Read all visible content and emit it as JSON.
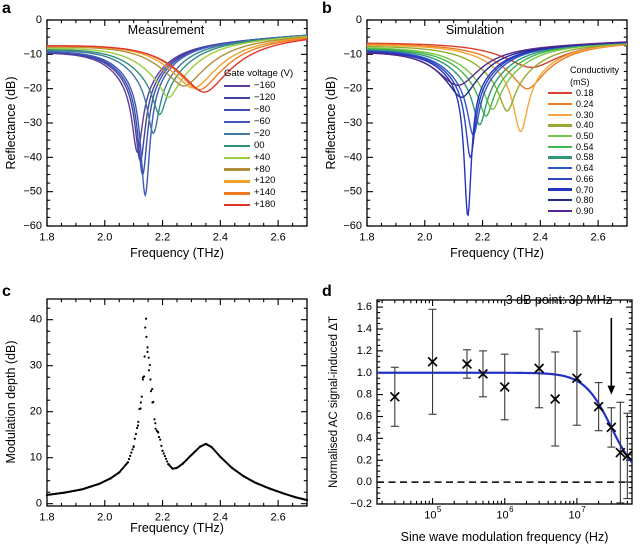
{
  "figure": {
    "background": "#ffffff",
    "axis_color": "#000000",
    "panels": [
      {
        "letter": "a"
      },
      {
        "letter": "b"
      },
      {
        "letter": "c"
      },
      {
        "letter": "d"
      }
    ]
  },
  "chart_data": [
    {
      "panel": "a",
      "type": "line",
      "title": "Measurement",
      "xlabel": "Frequency (THz)",
      "ylabel": "Reflectance (dB)",
      "xlim": [
        1.8,
        2.7
      ],
      "ylim": [
        -60,
        0
      ],
      "xticks": [
        1.8,
        2.0,
        2.2,
        2.4,
        2.6
      ],
      "x_minor_step": 0.05,
      "yticks": [
        0,
        -10,
        -20,
        -30,
        -40,
        -50,
        -60
      ],
      "y_minor_step": 2.5,
      "legend_title_lines": [
        "Gate voltage (V)"
      ],
      "baseline_right_db": -4.1,
      "line_width": 1.4,
      "model_note": "R(f) = lerp(left_db to right_db over 1.8-2.7) - broad_db*Lor(f-dip_thz, broad_w) - (totaldepth-broad_db)*Lor(f-dip_thz, narrow_w)",
      "series": [
        {
          "label": "−160",
          "color": "#5f3a9b",
          "left_db": -8.6,
          "dip_thz": 2.113,
          "min_db": -38.5,
          "broad_db": 11,
          "broad_w": 0.1,
          "narrow_w": 0.022
        },
        {
          "label": "−120",
          "color": "#43419f",
          "left_db": -8.5,
          "dip_thz": 2.123,
          "min_db": -41.0,
          "broad_db": 11,
          "broad_w": 0.1,
          "narrow_w": 0.021
        },
        {
          "label": "−80",
          "color": "#3c4fae",
          "left_db": -8.45,
          "dip_thz": 2.131,
          "min_db": -45.0,
          "broad_db": 11,
          "broad_w": 0.1,
          "narrow_w": 0.02
        },
        {
          "label": "−60",
          "color": "#3f57bb",
          "left_db": -8.35,
          "dip_thz": 2.14,
          "min_db": -51.0,
          "broad_db": 11,
          "broad_w": 0.1,
          "narrow_w": 0.019
        },
        {
          "label": "−20",
          "color": "#41799f",
          "left_db": -8.1,
          "dip_thz": 2.168,
          "min_db": -33.0,
          "broad_db": 11,
          "broad_w": 0.104,
          "narrow_w": 0.024
        },
        {
          "label": "00",
          "color": "#2f9179",
          "left_db": -7.8,
          "dip_thz": 2.19,
          "min_db": -27.5,
          "broad_db": 11,
          "broad_w": 0.11,
          "narrow_w": 0.028
        },
        {
          "label": "+40",
          "color": "#9ccd3e",
          "left_db": -7.5,
          "dip_thz": 2.222,
          "min_db": -22.5,
          "broad_db": 11,
          "broad_w": 0.115,
          "narrow_w": 0.034
        },
        {
          "label": "+80",
          "color": "#b08f3c",
          "left_db": -7.25,
          "dip_thz": 2.275,
          "min_db": -19.2,
          "broad_db": 11,
          "broad_w": 0.12,
          "narrow_w": 0.045
        },
        {
          "label": "+120",
          "color": "#f0a22b",
          "left_db": -7.05,
          "dip_thz": 2.308,
          "min_db": -19.8,
          "broad_db": 12,
          "broad_w": 0.12,
          "narrow_w": 0.05
        },
        {
          "label": "+140",
          "color": "#ee7b22",
          "left_db": -6.9,
          "dip_thz": 2.328,
          "min_db": -20.3,
          "broad_db": 12,
          "broad_w": 0.125,
          "narrow_w": 0.052
        },
        {
          "label": "+180",
          "color": "#e2342b",
          "left_db": -6.8,
          "dip_thz": 2.345,
          "min_db": -21.0,
          "broad_db": 13,
          "broad_w": 0.13,
          "narrow_w": 0.055
        }
      ]
    },
    {
      "panel": "b",
      "type": "line",
      "title": "Simulation",
      "xlabel": "Frequency (THz)",
      "ylabel": "Reflectance (dB)",
      "xlim": [
        1.8,
        2.7
      ],
      "ylim": [
        -60,
        0
      ],
      "xticks": [
        1.8,
        2.0,
        2.2,
        2.4,
        2.6
      ],
      "x_minor_step": 0.05,
      "yticks": [
        0,
        -10,
        -20,
        -30,
        -40,
        -50,
        -60
      ],
      "y_minor_step": 2.5,
      "legend_title_lines": [
        "Conductivity",
        "(mS)"
      ],
      "baseline_right_db": -6.1,
      "line_width": 1.4,
      "model_note": "same dip model as panel a",
      "series": [
        {
          "label": "0.18",
          "color": "#d8402f",
          "left_db": -6.4,
          "dip_thz": 2.37,
          "min_db": -13.8,
          "broad_db": 6,
          "broad_w": 0.14,
          "narrow_w": 0.07
        },
        {
          "label": "0.24",
          "color": "#ef7a1f",
          "left_db": -6.6,
          "dip_thz": 2.355,
          "min_db": -20.0,
          "broad_db": 8,
          "broad_w": 0.13,
          "narrow_w": 0.055
        },
        {
          "label": "0.30",
          "color": "#f3a83e",
          "left_db": -6.8,
          "dip_thz": 2.332,
          "min_db": -32.5,
          "broad_db": 9,
          "broad_w": 0.125,
          "narrow_w": 0.03
        },
        {
          "label": "0.40",
          "color": "#93ad2f",
          "left_db": -7.1,
          "dip_thz": 2.285,
          "min_db": -26.5,
          "broad_db": 10,
          "broad_w": 0.12,
          "narrow_w": 0.032
        },
        {
          "label": "0.50",
          "color": "#77c845",
          "left_db": -7.4,
          "dip_thz": 2.235,
          "min_db": -26.0,
          "broad_db": 11,
          "broad_w": 0.115,
          "narrow_w": 0.03
        },
        {
          "label": "0.54",
          "color": "#45b649",
          "left_db": -7.6,
          "dip_thz": 2.212,
          "min_db": -28.0,
          "broad_db": 11,
          "broad_w": 0.112,
          "narrow_w": 0.028
        },
        {
          "label": "0.58",
          "color": "#2d9a71",
          "left_db": -7.8,
          "dip_thz": 2.19,
          "min_db": -30.5,
          "broad_db": 11,
          "broad_w": 0.11,
          "narrow_w": 0.026
        },
        {
          "label": "0.64",
          "color": "#3156c9",
          "left_db": -8.1,
          "dip_thz": 2.168,
          "min_db": -33.5,
          "broad_db": 11,
          "broad_w": 0.105,
          "narrow_w": 0.024
        },
        {
          "label": "0.66",
          "color": "#2c46c1",
          "left_db": -8.3,
          "dip_thz": 2.158,
          "min_db": -40.0,
          "broad_db": 11,
          "broad_w": 0.102,
          "narrow_w": 0.02
        },
        {
          "label": "0.70",
          "color": "#2534ba",
          "left_db": -8.5,
          "dip_thz": 2.149,
          "min_db": -57.0,
          "broad_db": 11,
          "broad_w": 0.1,
          "narrow_w": 0.015
        },
        {
          "label": "0.80",
          "color": "#242a8a",
          "left_db": -8.6,
          "dip_thz": 2.128,
          "min_db": -22.5,
          "broad_db": 11,
          "broad_w": 0.1,
          "narrow_w": 0.04
        },
        {
          "label": "0.90",
          "color": "#55288f",
          "left_db": -8.7,
          "dip_thz": 2.116,
          "min_db": -19.0,
          "broad_db": 10,
          "broad_w": 0.1,
          "narrow_w": 0.05
        }
      ]
    },
    {
      "panel": "c",
      "type": "scatter",
      "title": "",
      "xlabel": "Frequency (THz)",
      "ylabel": "Modulation depth (dB)",
      "xlim": [
        1.8,
        2.7
      ],
      "ylim": [
        -0.5,
        44.5
      ],
      "xticks": [
        1.8,
        2.0,
        2.2,
        2.4,
        2.6
      ],
      "x_minor_step": 0.05,
      "yticks": [
        0,
        10,
        20,
        30,
        40
      ],
      "y_minor_step": 2.5,
      "marker": {
        "shape": "dot",
        "color": "#000000",
        "radius": 1.1
      },
      "sample_step_thz": 0.004,
      "peak_scatter": {
        "center_thz": 2.146,
        "sigma": 0.03,
        "amplitude_db": 3.4
      },
      "anchor_points_f_db": [
        [
          1.8,
          1.9
        ],
        [
          1.86,
          2.4
        ],
        [
          1.92,
          3.1
        ],
        [
          1.98,
          4.3
        ],
        [
          2.02,
          5.5
        ],
        [
          2.05,
          6.8
        ],
        [
          2.08,
          9.0
        ],
        [
          2.1,
          12.5
        ],
        [
          2.115,
          17.0
        ],
        [
          2.125,
          22.0
        ],
        [
          2.132,
          27.0
        ],
        [
          2.138,
          32.0
        ],
        [
          2.143,
          40.2
        ],
        [
          2.148,
          33.0
        ],
        [
          2.153,
          29.0
        ],
        [
          2.158,
          27.0
        ],
        [
          2.165,
          22.0
        ],
        [
          2.175,
          17.5
        ],
        [
          2.185,
          15.5
        ],
        [
          2.2,
          11.5
        ],
        [
          2.22,
          8.6
        ],
        [
          2.235,
          7.6
        ],
        [
          2.25,
          7.8
        ],
        [
          2.27,
          8.7
        ],
        [
          2.3,
          10.6
        ],
        [
          2.33,
          12.4
        ],
        [
          2.35,
          13.0
        ],
        [
          2.37,
          12.3
        ],
        [
          2.4,
          10.2
        ],
        [
          2.44,
          7.8
        ],
        [
          2.48,
          6.0
        ],
        [
          2.52,
          4.6
        ],
        [
          2.57,
          3.3
        ],
        [
          2.62,
          2.2
        ],
        [
          2.66,
          1.4
        ],
        [
          2.7,
          0.8
        ]
      ]
    },
    {
      "panel": "d",
      "type": "scatter",
      "title": "",
      "xlabel": "Sine wave modulation frequency (Hz)",
      "ylabel": "Normalised AC signal-induced ΔT",
      "x_scale": "log",
      "xlim": [
        17000,
        58000000
      ],
      "ylim": [
        -0.2,
        1.665
      ],
      "xticks": [
        100000,
        1000000,
        10000000
      ],
      "yticks": [
        1.6,
        1.4,
        1.2,
        1.0,
        0.8,
        0.6,
        0.4,
        0.2,
        0.0,
        -0.2
      ],
      "y_minor_step": 0.05,
      "points": {
        "x_hz": [
          30000,
          100000,
          300000,
          500000,
          1000000,
          3000000,
          5000000,
          10000000,
          20000000,
          30000000,
          40000000,
          50000000
        ],
        "y": [
          0.78,
          1.1,
          1.08,
          0.99,
          0.87,
          1.04,
          0.76,
          0.95,
          0.69,
          0.5,
          0.27,
          0.24
        ],
        "yerr": [
          0.27,
          0.48,
          0.13,
          0.21,
          0.3,
          0.36,
          0.43,
          0.43,
          0.22,
          0.18,
          0.46,
          0.39
        ]
      },
      "marker": {
        "shape": "x",
        "color": "#000000",
        "size": 4.4
      },
      "errorbar_color": "#3a3a3a",
      "fit": {
        "type": "low-pass roll-off",
        "fc_hz": 30000000,
        "exponent": 2.3,
        "color": "#2432c8"
      },
      "zero_line": {
        "y": 0.0,
        "style": "dashed",
        "color": "#000000"
      },
      "annotation": {
        "text": "−3 dB point: 30 MHz",
        "arrow_x_hz": 30000000,
        "arrow_y_from": 1.5,
        "arrow_y_to": 0.8
      }
    }
  ]
}
